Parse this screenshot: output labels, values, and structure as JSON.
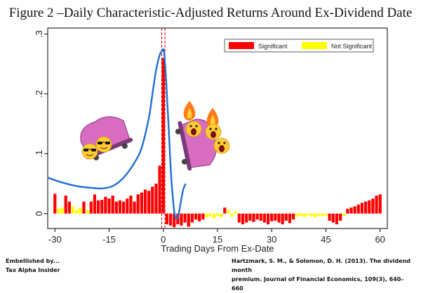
{
  "title": "Figure 2 –Daily Characteristic-Adjusted Returns Around Ex-Dividend Date",
  "footer": {
    "left_line1": "Embellished by...",
    "left_line2": "Tax Alpha Insider",
    "right_line1": "Hartzmark, S. M., & Solomon, D. H. (2013). The dividend month",
    "right_line2": "premium. Journal of Financial Economics, 109(3), 640–660"
  },
  "colors": {
    "significant": "#ff0000",
    "not_significant": "#ffff00",
    "curve": "#1f6fd1",
    "vline": "#cc0000",
    "decoration": "#d86cc0"
  },
  "decorations": [
    "sunglasses-emoji-icon",
    "roller-coaster-car-icon",
    "screaming-emoji-icon",
    "fire-icon"
  ],
  "chart_data": {
    "type": "bar",
    "title": "Figure 2 –Daily Characteristic-Adjusted Returns Around Ex-Dividend Date",
    "xlabel": "Trading Days From Ex-Date",
    "ylabel": "",
    "xlim": [
      -32,
      62
    ],
    "ylim": [
      -0.025,
      0.31
    ],
    "xticks": [
      -30,
      -15,
      0,
      15,
      30,
      45,
      60
    ],
    "xtick_labels": [
      "-30",
      "-15",
      "0",
      "15",
      "30",
      "45",
      "60"
    ],
    "yticks": [
      0,
      0.1,
      0.2,
      0.3
    ],
    "ytick_labels": [
      "0",
      ".1",
      ".2",
      ".3"
    ],
    "legend": {
      "position": "top-right",
      "entries": [
        "Significant",
        "Not Significant"
      ]
    },
    "grid": false,
    "vline_x": 0,
    "series": [
      {
        "name": "Significant",
        "x": [
          -30,
          -27,
          -26,
          -22,
          -20,
          -19,
          -18,
          -17,
          -16,
          -15,
          -14,
          -13,
          -12,
          -11,
          -10,
          -9,
          -8,
          -7,
          -6,
          -5,
          -4,
          -3,
          -2,
          -1,
          0,
          1,
          2,
          3,
          4,
          5,
          6,
          7,
          8,
          9,
          10,
          11,
          17,
          21,
          22,
          23,
          24,
          25,
          26,
          27,
          28,
          29,
          30,
          31,
          32,
          33,
          34,
          35,
          36,
          46,
          47,
          48,
          49,
          51,
          52,
          53,
          54,
          55,
          56,
          57,
          58,
          59,
          60
        ],
        "values": [
          0.033,
          0.03,
          0.02,
          0.02,
          0.02,
          0.032,
          0.022,
          0.023,
          0.028,
          0.025,
          0.03,
          0.02,
          0.022,
          0.02,
          0.025,
          0.03,
          0.02,
          0.032,
          0.035,
          0.04,
          0.038,
          0.045,
          0.05,
          0.08,
          0.26,
          -0.018,
          -0.02,
          -0.023,
          -0.018,
          -0.02,
          -0.015,
          -0.022,
          -0.015,
          -0.01,
          -0.013,
          -0.01,
          0.01,
          -0.015,
          -0.018,
          -0.015,
          -0.012,
          -0.014,
          -0.01,
          -0.012,
          -0.015,
          -0.018,
          -0.013,
          -0.012,
          -0.015,
          -0.018,
          -0.012,
          -0.016,
          -0.01,
          -0.012,
          -0.015,
          -0.018,
          -0.012,
          0.008,
          0.01,
          0.012,
          0.015,
          0.018,
          0.02,
          0.022,
          0.025,
          0.03,
          0.032
        ]
      },
      {
        "name": "Not Significant",
        "x": [
          -29,
          -28,
          -25,
          -24,
          -23,
          -21,
          12,
          13,
          14,
          15,
          16,
          18,
          19,
          20,
          37,
          38,
          39,
          40,
          41,
          42,
          43,
          44,
          45,
          50
        ],
        "values": [
          0.008,
          0.01,
          0.012,
          0.006,
          0.01,
          0.006,
          -0.006,
          -0.005,
          -0.008,
          -0.004,
          -0.006,
          0.006,
          -0.005,
          0.004,
          -0.005,
          -0.004,
          -0.006,
          -0.003,
          -0.005,
          -0.006,
          -0.004,
          -0.005,
          -0.003,
          -0.004
        ]
      }
    ],
    "curve": {
      "name": "",
      "x": [
        -32,
        -28,
        -24,
        -20,
        -17,
        -14,
        -11,
        -8,
        -6,
        -4,
        -3,
        -2,
        -1,
        -0.3,
        0.2,
        0.8,
        1.5,
        2.2,
        3,
        3.6,
        4.2,
        4.8,
        5.5,
        6.2
      ],
      "values": [
        0.06,
        0.052,
        0.046,
        0.043,
        0.042,
        0.046,
        0.06,
        0.085,
        0.11,
        0.16,
        0.2,
        0.24,
        0.265,
        0.272,
        0.27,
        0.22,
        0.14,
        0.06,
        0.005,
        -0.008,
        -0.002,
        0.018,
        0.04,
        0.05
      ]
    }
  }
}
